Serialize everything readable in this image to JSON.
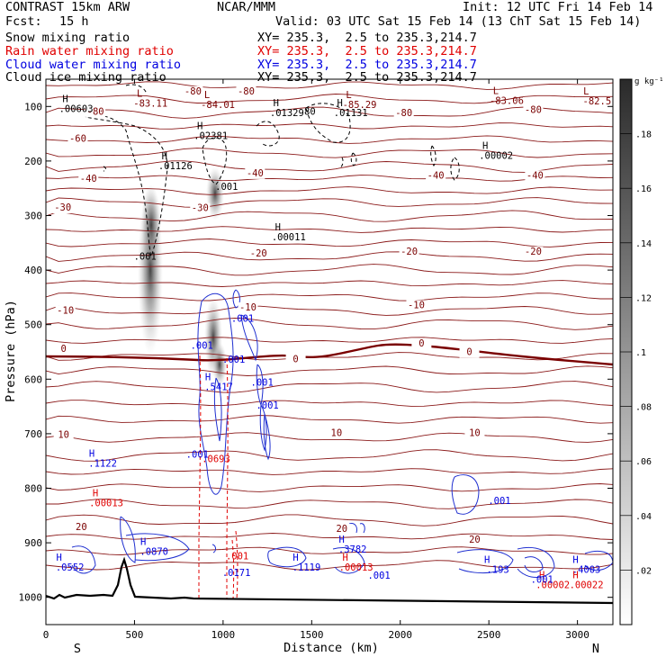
{
  "header": {
    "title": "CONTRAST 15km ARW",
    "center": "NCAR/MMM",
    "init": "Init: 12 UTC Fri 14 Feb 14",
    "fcst_label": "Fcst:",
    "fcst_value": "15 h",
    "valid": "Valid: 03 UTC Sat 15 Feb 14 (13 ChT Sat 15 Feb 14)",
    "fields": [
      {
        "label": "Snow mixing ratio",
        "xy": "XY= 235.3,  2.5 to 235.3,214.7",
        "color": "#000000"
      },
      {
        "label": "Rain water mixing ratio",
        "xy": "XY= 235.3,  2.5 to 235.3,214.7",
        "color": "#e00000"
      },
      {
        "label": "Cloud water mixing ratio",
        "xy": "XY= 235.3,  2.5 to 235.3,214.7",
        "color": "#0000e0"
      },
      {
        "label": "Cloud ice mixing ratio",
        "xy": "XY= 235.3,  2.5 to 235.3,214.7",
        "color": "#000000"
      }
    ]
  },
  "chart_data": {
    "type": "cross-section",
    "xlabel": "Distance (km)",
    "ylabel": "Pressure (hPa)",
    "x_ticks": [
      0,
      500,
      1000,
      1500,
      2000,
      2500,
      3000
    ],
    "y_ticks": [
      100,
      200,
      300,
      400,
      500,
      600,
      700,
      800,
      900,
      1000
    ],
    "xlim": [
      0,
      3200
    ],
    "ylim": [
      1050,
      50
    ],
    "x_end_labels": {
      "left": "S",
      "right": "N"
    },
    "colorbar": {
      "unit": "g kg⁻¹",
      "ticks": [
        ".02",
        ".04",
        ".06",
        ".08",
        ".1",
        ".12",
        ".14",
        ".16",
        ".18"
      ]
    },
    "temperature_labels": [
      {
        "text": "-80",
        "x": 830,
        "p": 78
      },
      {
        "text": "-80",
        "x": 1130,
        "p": 78
      },
      {
        "text": "-80",
        "x": 280,
        "p": 115
      },
      {
        "text": "-80",
        "x": 2020,
        "p": 118
      },
      {
        "text": "-80",
        "x": 2750,
        "p": 112
      },
      {
        "text": "-60",
        "x": 180,
        "p": 165
      },
      {
        "text": "-40",
        "x": 240,
        "p": 238
      },
      {
        "text": "-40",
        "x": 1180,
        "p": 228
      },
      {
        "text": "-40",
        "x": 2200,
        "p": 232
      },
      {
        "text": "-40",
        "x": 2760,
        "p": 232
      },
      {
        "text": "-30",
        "x": 95,
        "p": 291
      },
      {
        "text": "-30",
        "x": 870,
        "p": 292
      },
      {
        "text": "-20",
        "x": 1200,
        "p": 375
      },
      {
        "text": "-20",
        "x": 2050,
        "p": 372
      },
      {
        "text": "-20",
        "x": 2750,
        "p": 372
      },
      {
        "text": "-10",
        "x": 110,
        "p": 480
      },
      {
        "text": "-10",
        "x": 1140,
        "p": 474
      },
      {
        "text": "-10",
        "x": 2090,
        "p": 470
      },
      {
        "text": "0",
        "x": 100,
        "p": 550
      },
      {
        "text": "0",
        "x": 1410,
        "p": 569
      },
      {
        "text": "0",
        "x": 2120,
        "p": 540
      },
      {
        "text": "0",
        "x": 2390,
        "p": 556
      },
      {
        "text": "10",
        "x": 100,
        "p": 708
      },
      {
        "text": "10",
        "x": 1640,
        "p": 704
      },
      {
        "text": "10",
        "x": 2420,
        "p": 704
      },
      {
        "text": "20",
        "x": 200,
        "p": 877
      },
      {
        "text": "20",
        "x": 1670,
        "p": 880
      },
      {
        "text": "20",
        "x": 2420,
        "p": 900
      }
    ],
    "highs": [
      {
        "text": ".00603",
        "x": 140,
        "p": 110,
        "color": "#000000"
      },
      {
        "text": ".02381",
        "x": 900,
        "p": 160,
        "color": "#000000"
      },
      {
        "text": ".01329",
        "x": 1330,
        "p": 118,
        "color": "#000000"
      },
      {
        "text": ".01131",
        "x": 1690,
        "p": 118,
        "color": "#000000"
      },
      {
        "text": ".01126",
        "x": 700,
        "p": 215,
        "color": "#000000"
      },
      {
        "text": ".00002",
        "x": 2510,
        "p": 196,
        "color": "#000000"
      },
      {
        "text": ".00011",
        "x": 1340,
        "p": 345,
        "color": "#000000"
      },
      {
        "text": ".5417",
        "x": 945,
        "p": 620,
        "color": "#0000e0"
      },
      {
        "text": ".1122",
        "x": 290,
        "p": 760,
        "color": "#0000e0"
      },
      {
        "text": ".00013",
        "x": 310,
        "p": 833,
        "color": "#e00000"
      },
      {
        "text": ".0552",
        "x": 105,
        "p": 951,
        "color": "#0000e0"
      },
      {
        "text": ".0870",
        "x": 580,
        "p": 922,
        "color": "#0000e0"
      },
      {
        "text": ".1119",
        "x": 1440,
        "p": 951,
        "color": "#0000e0"
      },
      {
        "text": ".3782",
        "x": 1700,
        "p": 918,
        "color": "#0000e0"
      },
      {
        "text": ".00013",
        "x": 1720,
        "p": 951,
        "color": "#e00000"
      },
      {
        "text": ".193",
        "x": 2520,
        "p": 955,
        "color": "#0000e0"
      },
      {
        "text": ".00002",
        "x": 2830,
        "p": 983,
        "color": "#e00000"
      },
      {
        "text": ".4003",
        "x": 3020,
        "p": 955,
        "color": "#0000e0"
      },
      {
        "text": ".00022",
        "x": 3020,
        "p": 983,
        "color": "#e00000"
      }
    ],
    "lows": [
      {
        "text": "-83.11",
        "x": 570,
        "p": 100
      },
      {
        "text": "-84.01",
        "x": 950,
        "p": 103
      },
      {
        "text": "-85.29",
        "x": 1750,
        "p": 103
      },
      {
        "text": "-83.06",
        "x": 2580,
        "p": 95
      },
      {
        "text": "-82.5",
        "x": 3090,
        "p": 96
      }
    ],
    "contour_labels": [
      {
        "text": ".001",
        "x": 560,
        "p": 381,
        "color": "#000000"
      },
      {
        "text": ".001",
        "x": 1020,
        "p": 253,
        "color": "#000000"
      },
      {
        "text": "80",
        "x": 1490,
        "p": 115,
        "color": "#000000"
      },
      {
        "text": ".001",
        "x": 1110,
        "p": 495,
        "color": "#0000e0"
      },
      {
        "text": ".001",
        "x": 880,
        "p": 544,
        "color": "#0000e0"
      },
      {
        "text": ".001",
        "x": 1060,
        "p": 570,
        "color": "#0000e0"
      },
      {
        "text": ".001",
        "x": 1220,
        "p": 612,
        "color": "#0000e0"
      },
      {
        "text": ".001",
        "x": 1250,
        "p": 654,
        "color": "#0000e0"
      },
      {
        "text": ".001",
        "x": 855,
        "p": 744,
        "color": "#0000e0"
      },
      {
        "text": ".0693",
        "x": 960,
        "p": 752,
        "color": "#e00000"
      },
      {
        "text": ".001",
        "x": 2560,
        "p": 829,
        "color": "#0000e0"
      },
      {
        "text": ".001",
        "x": 1080,
        "p": 930,
        "color": "#e00000"
      },
      {
        "text": ".0171",
        "x": 1075,
        "p": 961,
        "color": "#0000e0"
      },
      {
        "text": ".001",
        "x": 1880,
        "p": 966,
        "color": "#0000e0"
      },
      {
        "text": ".001",
        "x": 2800,
        "p": 973,
        "color": "#0000e0"
      }
    ]
  }
}
